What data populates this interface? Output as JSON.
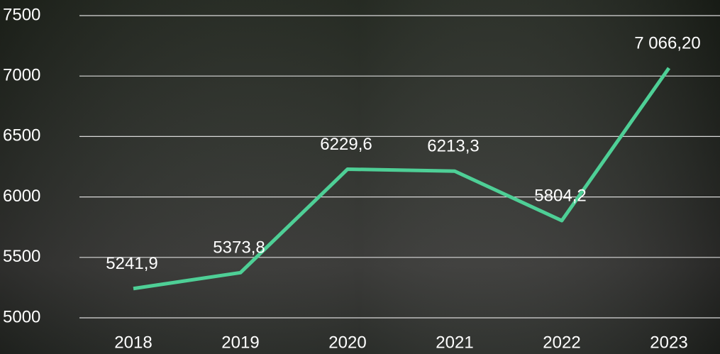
{
  "chart_data": {
    "type": "line",
    "categories": [
      "2018",
      "2019",
      "2020",
      "2021",
      "2022",
      "2023"
    ],
    "values": [
      5241.9,
      5373.8,
      6229.6,
      6213.3,
      5804.2,
      7066.2
    ],
    "value_labels": [
      "5241,9",
      "5373,8",
      "6229,6",
      "6213,3",
      "5804,2",
      "7 066,20"
    ],
    "color": "#4ecf96",
    "ylim": [
      5000,
      7500
    ],
    "yticks": [
      5000,
      5500,
      6000,
      6500,
      7000,
      7500
    ],
    "grid": true
  }
}
